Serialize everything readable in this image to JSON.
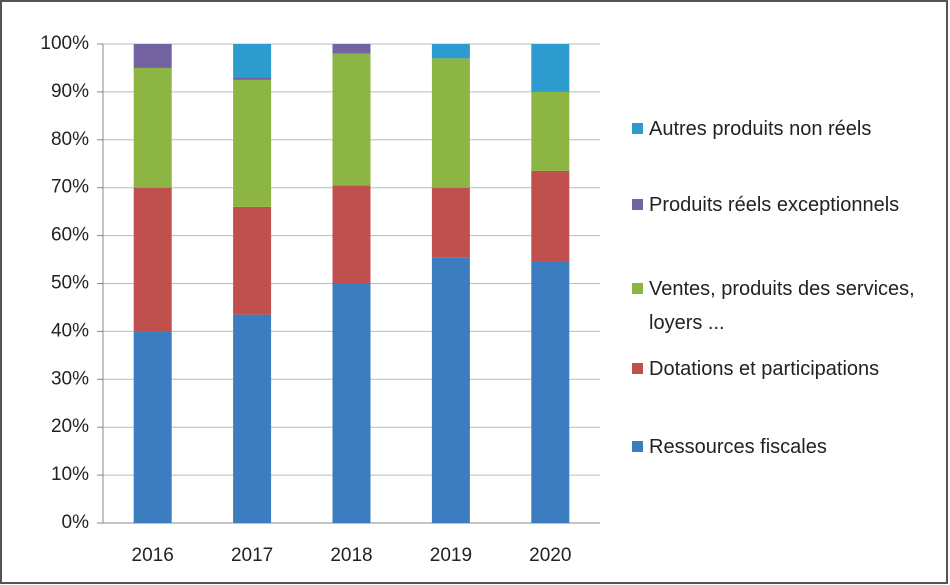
{
  "chart_data": {
    "type": "stacked_bar",
    "categories": [
      "2016",
      "2017",
      "2018",
      "2019",
      "2020"
    ],
    "series": [
      {
        "name": "Ressources fiscales",
        "color": "#3b7dbf",
        "values": [
          40,
          43.5,
          50,
          55.5,
          54.5
        ]
      },
      {
        "name": "Dotations et participations",
        "color": "#c0504d",
        "values": [
          30,
          22.5,
          20.5,
          14.5,
          19
        ]
      },
      {
        "name": "Ventes, produits des services, loyers ...",
        "color": "#8db543",
        "values": [
          25,
          26.5,
          27.5,
          27,
          16.5
        ]
      },
      {
        "name": "Produits réels exceptionnels",
        "color": "#7363a1",
        "values": [
          5,
          0.5,
          2,
          0,
          0
        ]
      },
      {
        "name": "Autres produits non réels",
        "color": "#2e9bcf",
        "values": [
          0,
          7,
          0,
          3,
          10
        ]
      }
    ],
    "ylim": [
      0,
      100
    ],
    "yticks": [
      {
        "value": 0,
        "label": "0%"
      },
      {
        "value": 10,
        "label": "10%"
      },
      {
        "value": 20,
        "label": "20%"
      },
      {
        "value": 30,
        "label": "30%"
      },
      {
        "value": 40,
        "label": "40%"
      },
      {
        "value": 50,
        "label": "50%"
      },
      {
        "value": 60,
        "label": "60%"
      },
      {
        "value": 70,
        "label": "70%"
      },
      {
        "value": 80,
        "label": "80%"
      },
      {
        "value": 90,
        "label": "90%"
      },
      {
        "value": 100,
        "label": "100%"
      }
    ],
    "grid": true,
    "legend": "right"
  }
}
